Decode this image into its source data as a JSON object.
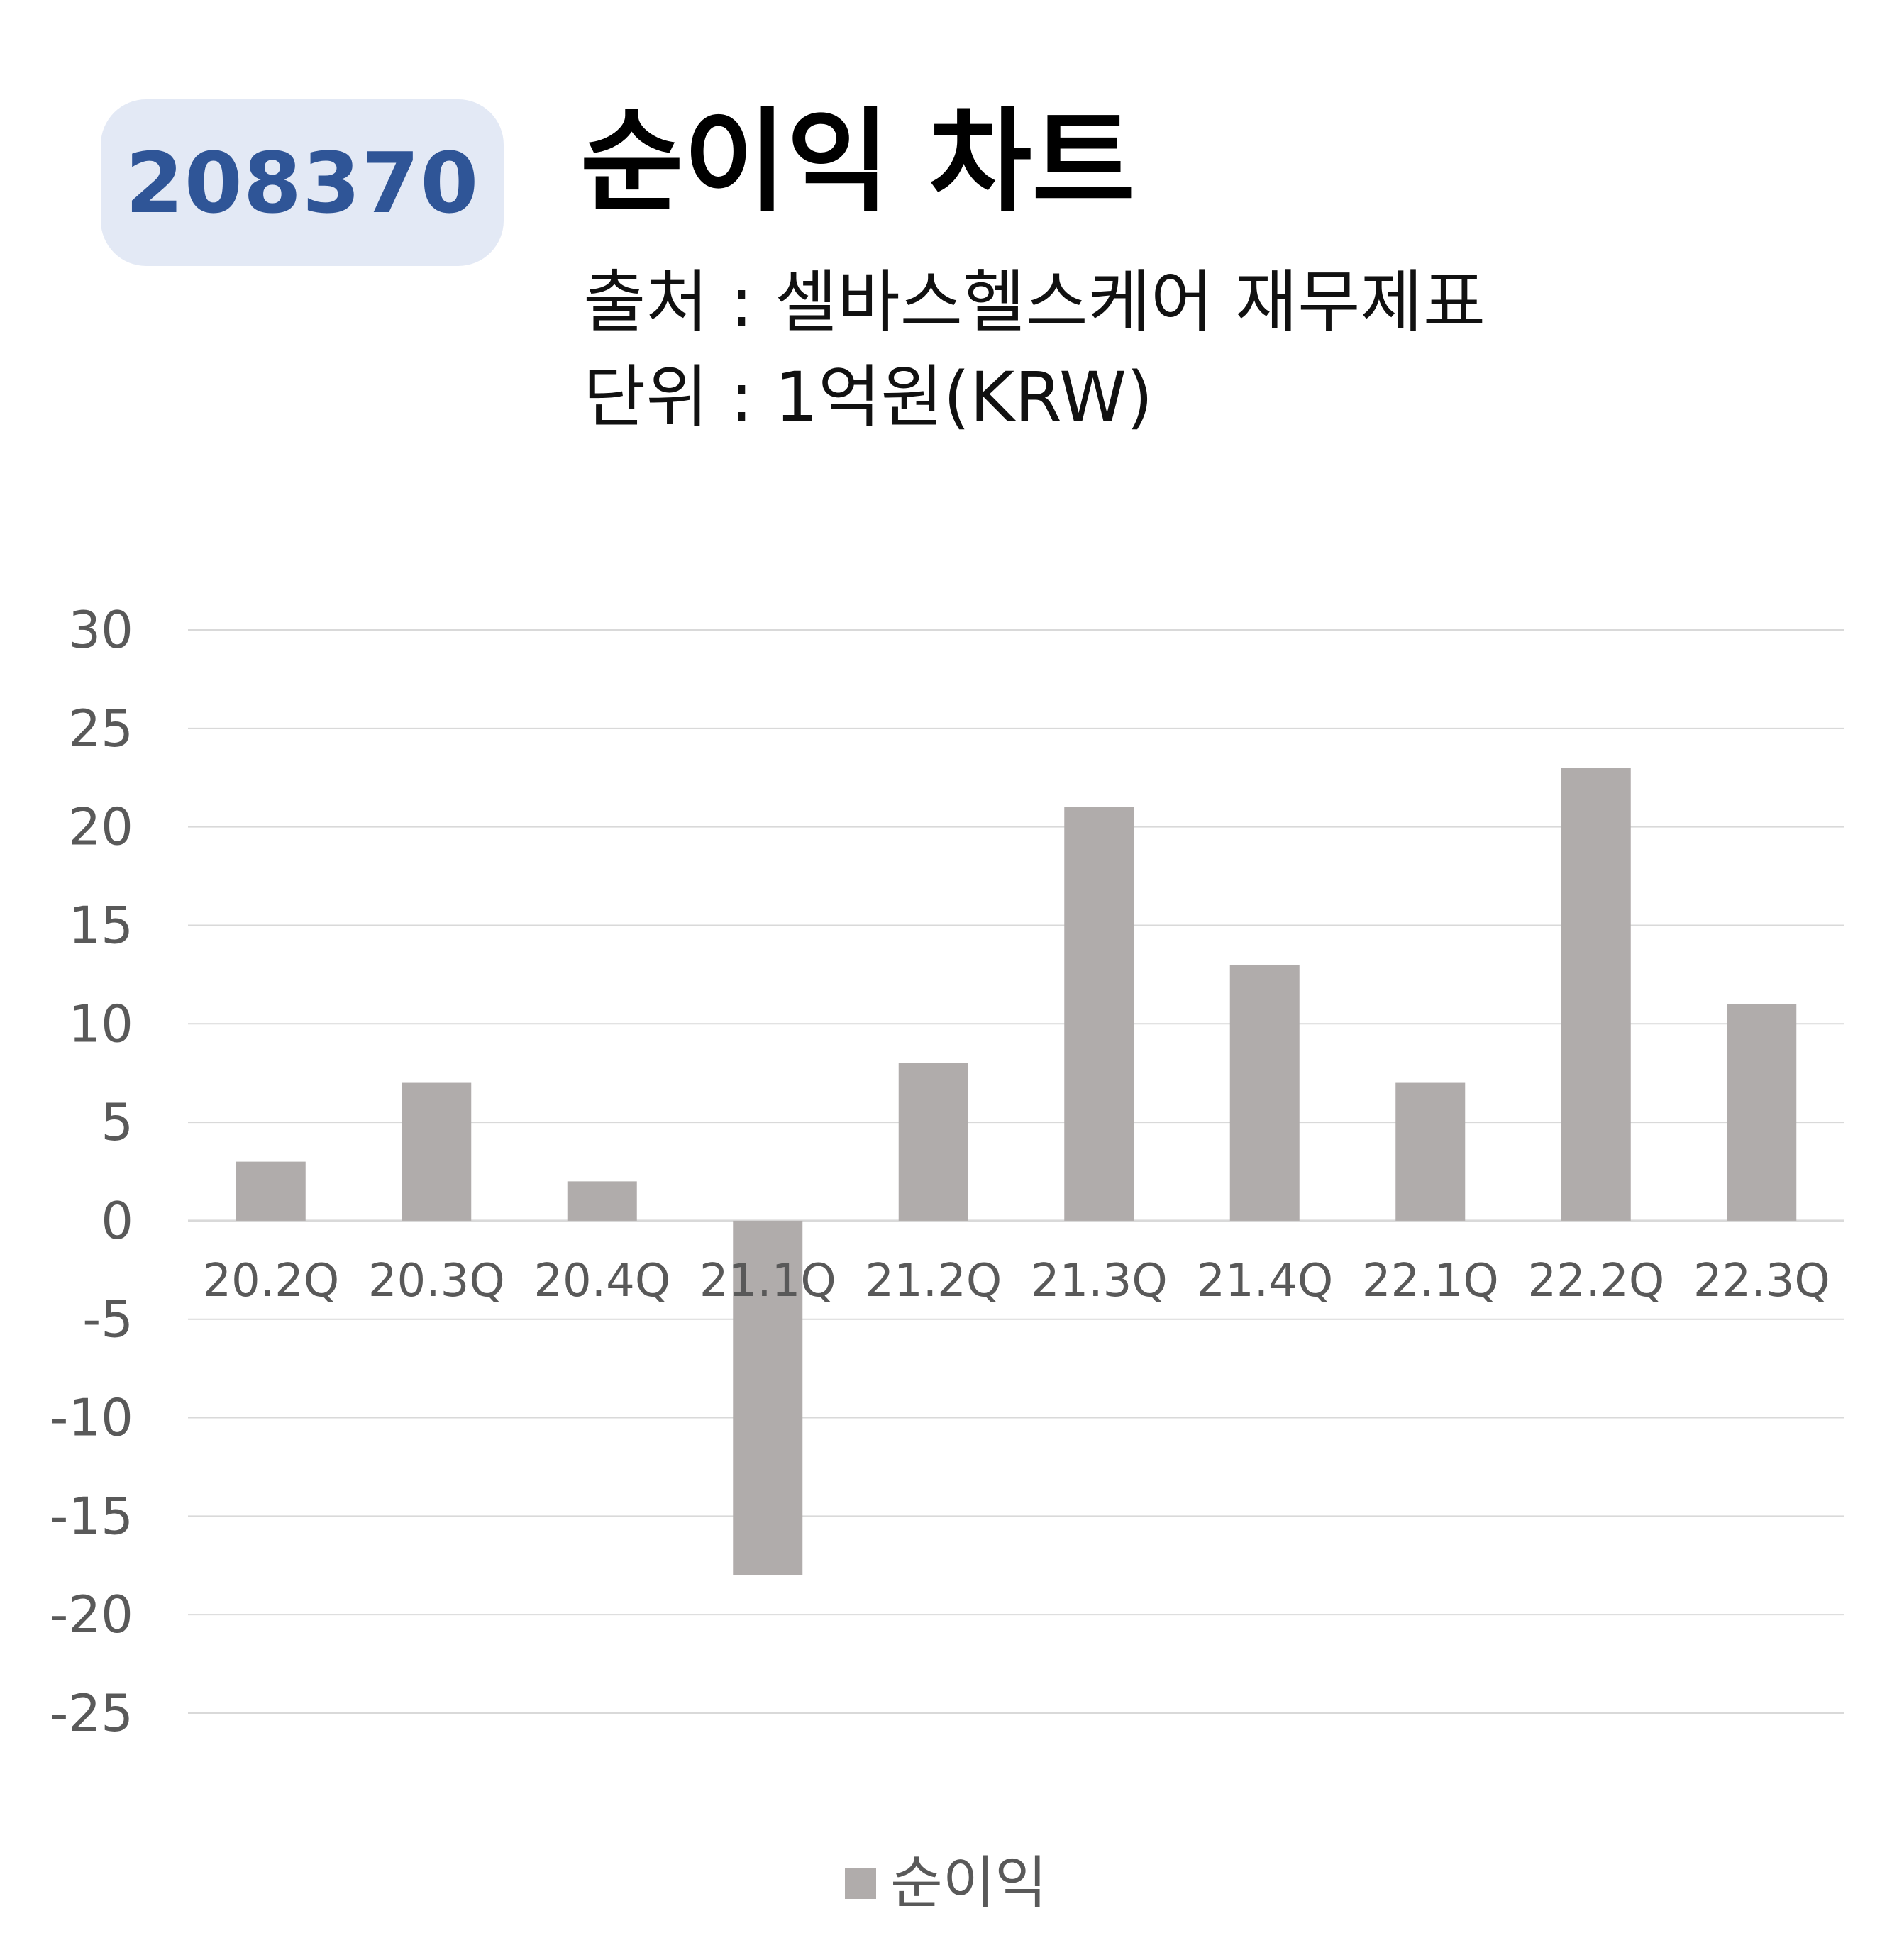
{
  "header": {
    "code": "208370",
    "title": "순이익 차트",
    "source": "출처 : 셀바스헬스케어 재무제표",
    "unit": "단위 : 1억원(KRW)"
  },
  "colors": {
    "bar": "#b0acab",
    "badge_bg": "#e3e9f5",
    "badge_text": "#2f5597",
    "grid": "#d9d9d9",
    "tick_text": "#595959"
  },
  "chart_data": {
    "type": "bar",
    "title": "순이익 차트",
    "categories": [
      "20.2Q",
      "20.3Q",
      "20.4Q",
      "21.1Q",
      "21.2Q",
      "21.3Q",
      "21.4Q",
      "22.1Q",
      "22.2Q",
      "22.3Q"
    ],
    "series": [
      {
        "name": "순이익",
        "values": [
          3,
          7,
          2,
          -18,
          8,
          21,
          13,
          7,
          23,
          11
        ]
      }
    ],
    "ylim": [
      -25,
      30
    ],
    "yticks": [
      30,
      25,
      20,
      15,
      10,
      5,
      0,
      -5,
      -10,
      -15,
      -20,
      -25
    ],
    "grid": true,
    "legend": "bottom"
  }
}
